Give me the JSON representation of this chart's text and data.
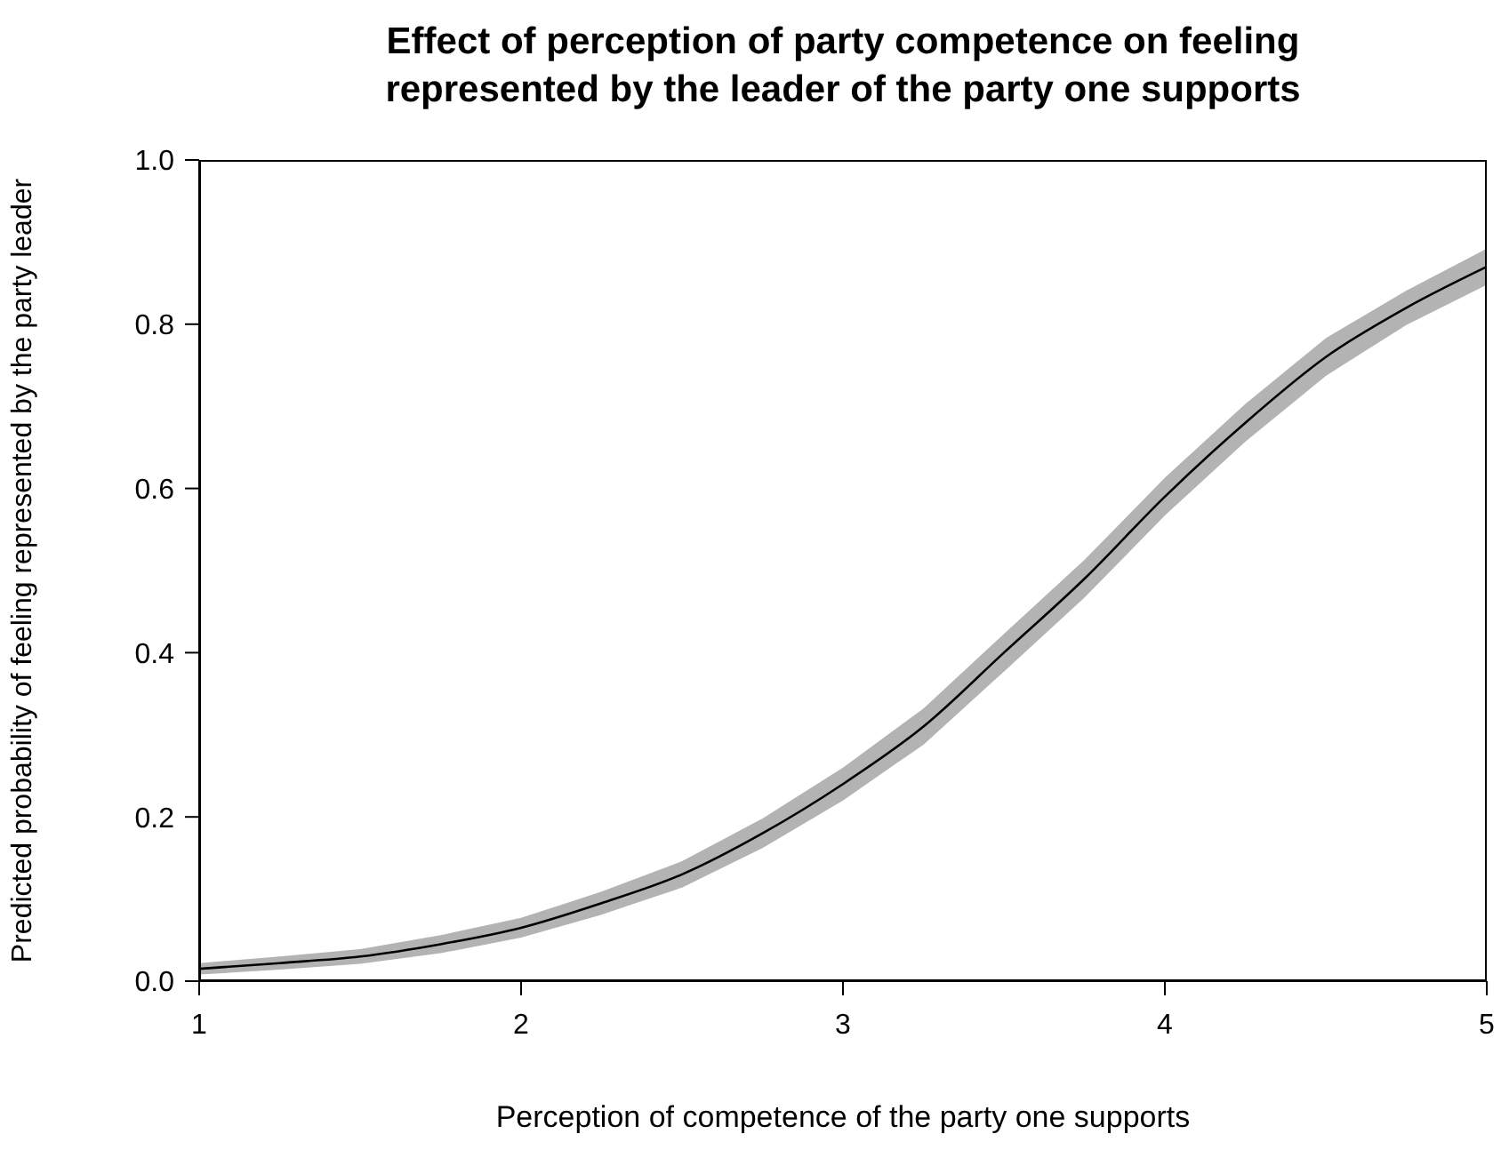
{
  "chart_data": {
    "type": "line",
    "title": "Effect of perception of party competence on feeling\nrepresented by the leader of the party one supports",
    "xlabel": "Perception of competence of the party one supports",
    "ylabel": "Predicted probability of feeling represented by the party leader",
    "x": [
      1,
      1.25,
      1.5,
      1.75,
      2,
      2.25,
      2.5,
      2.75,
      3,
      3.25,
      3.5,
      3.75,
      4,
      4.25,
      4.5,
      4.75,
      5
    ],
    "series": [
      {
        "color": "#000000",
        "values": [
          0.015,
          0.022,
          0.03,
          0.045,
          0.065,
          0.095,
          0.13,
          0.18,
          0.24,
          0.31,
          0.4,
          0.49,
          0.59,
          0.68,
          0.76,
          0.82,
          0.87
        ],
        "lower": [
          0.008,
          0.014,
          0.021,
          0.034,
          0.053,
          0.081,
          0.114,
          0.162,
          0.22,
          0.288,
          0.377,
          0.467,
          0.567,
          0.657,
          0.737,
          0.799,
          0.848
        ],
        "upper": [
          0.022,
          0.03,
          0.039,
          0.056,
          0.077,
          0.109,
          0.146,
          0.198,
          0.26,
          0.332,
          0.423,
          0.513,
          0.613,
          0.703,
          0.783,
          0.841,
          0.892
        ]
      }
    ],
    "xlim": [
      1,
      5
    ],
    "xticks": [
      1,
      2,
      3,
      4,
      5
    ],
    "ylim": [
      0,
      1
    ],
    "yticks": [
      {
        "value": 0,
        "label": "0.0"
      },
      {
        "value": 0.2,
        "label": "0.2"
      },
      {
        "value": 0.4,
        "label": "0.4"
      },
      {
        "value": 0.6,
        "label": "0.6"
      },
      {
        "value": 0.8,
        "label": "0.8"
      },
      {
        "value": 1,
        "label": "1.0"
      }
    ],
    "marker": "none",
    "line_style": "solid"
  }
}
